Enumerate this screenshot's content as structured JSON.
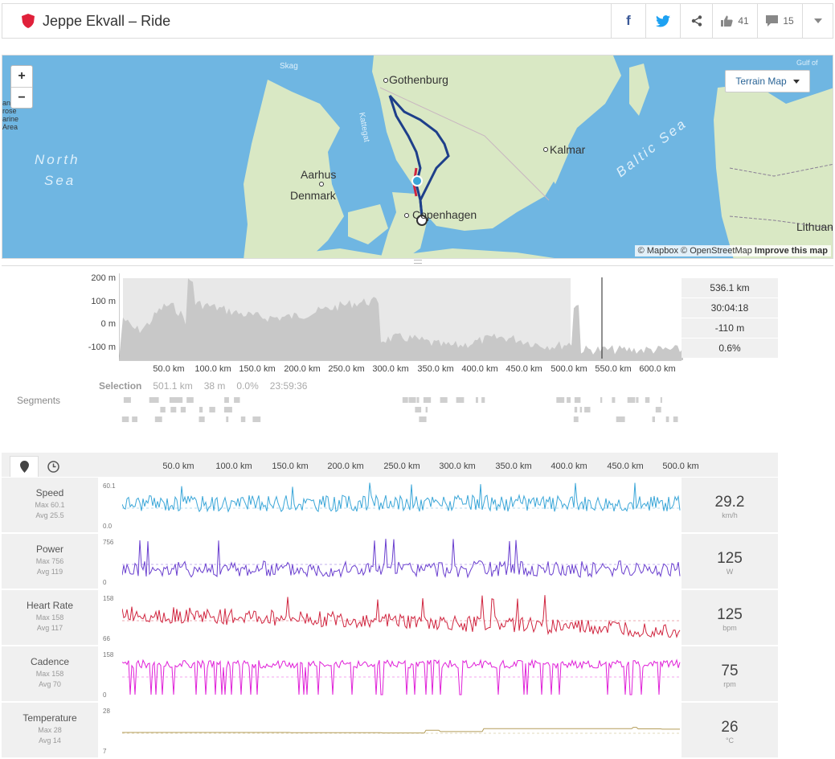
{
  "header": {
    "title": "Jeppe Ekvall – Ride",
    "kudos_count": "41",
    "comments_count": "15"
  },
  "map": {
    "zoom_in": "+",
    "zoom_out": "−",
    "terrain_button": "Terrain Map",
    "attribution_mapbox": "© Mapbox",
    "attribution_osm": "© OpenStreetMap",
    "attribution_improve": "Improve this map",
    "labels": {
      "gothenburg": "Gothenburg",
      "kalmar": "Kalmar",
      "aarhus": "Aarhus",
      "denmark": "Denmark",
      "copenhagen": "Copenhagen",
      "lithuania": "Lithuan",
      "north": "North",
      "sea": "Sea",
      "baltic_sea": "Baltic Sea",
      "kattegat": "Kattegat",
      "skagerrak": "Skag",
      "gulf": "Gulf of",
      "marine_1": "ani",
      "marine_2": "rose",
      "marine_3": "arine",
      "marine_4": "Area"
    },
    "colors": {
      "water": "#6fb6e2",
      "land": "#d9e8c4",
      "route": "#1e3f8a",
      "selection": "#d0253f"
    }
  },
  "elevation": {
    "y_ticks": [
      "200 m",
      "100 m",
      "0 m",
      "-100 m"
    ],
    "x_ticks": [
      "50.0 km",
      "100.0 km",
      "150.0 km",
      "200.0 km",
      "250.0 km",
      "300.0 km",
      "350.0 km",
      "400.0 km",
      "450.0 km",
      "500.0 km",
      "550.0 km",
      "600.0 km"
    ],
    "stats": [
      "536.1 km",
      "30:04:18",
      "-110 m",
      "0.6%"
    ],
    "selection": {
      "label": "Selection",
      "distance": "501.1 km",
      "elevation": "38 m",
      "grade": "0.0%",
      "time": "23:59:36"
    },
    "segments_label": "Segments"
  },
  "streams": {
    "x_ticks": [
      "50.0 km",
      "100.0 km",
      "150.0 km",
      "200.0 km",
      "250.0 km",
      "300.0 km",
      "350.0 km",
      "400.0 km",
      "450.0 km",
      "500.0 km"
    ],
    "rows": [
      {
        "name": "Speed",
        "max": "Max 60.1",
        "avg": "Avg 25.5",
        "ytop": "60.1",
        "ybot": "0.0",
        "value": "29.2",
        "unit": "km/h",
        "color": "#3aa6d8"
      },
      {
        "name": "Power",
        "max": "Max 756",
        "avg": "Avg 119",
        "ytop": "756",
        "ybot": "0",
        "value": "125",
        "unit": "W",
        "color": "#6a3fcf"
      },
      {
        "name": "Heart Rate",
        "max": "Max 158",
        "avg": "Avg 117",
        "ytop": "158",
        "ybot": "66",
        "value": "125",
        "unit": "bpm",
        "color": "#d0253f"
      },
      {
        "name": "Cadence",
        "max": "Max 158",
        "avg": "Avg 70",
        "ytop": "158",
        "ybot": "0",
        "value": "75",
        "unit": "rpm",
        "color": "#e020d8"
      },
      {
        "name": "Temperature",
        "max": "Max 28",
        "avg": "Avg 14",
        "ytop": "28",
        "ybot": "7",
        "value": "26",
        "unit": "°C",
        "color": "#b59e5a"
      }
    ]
  }
}
